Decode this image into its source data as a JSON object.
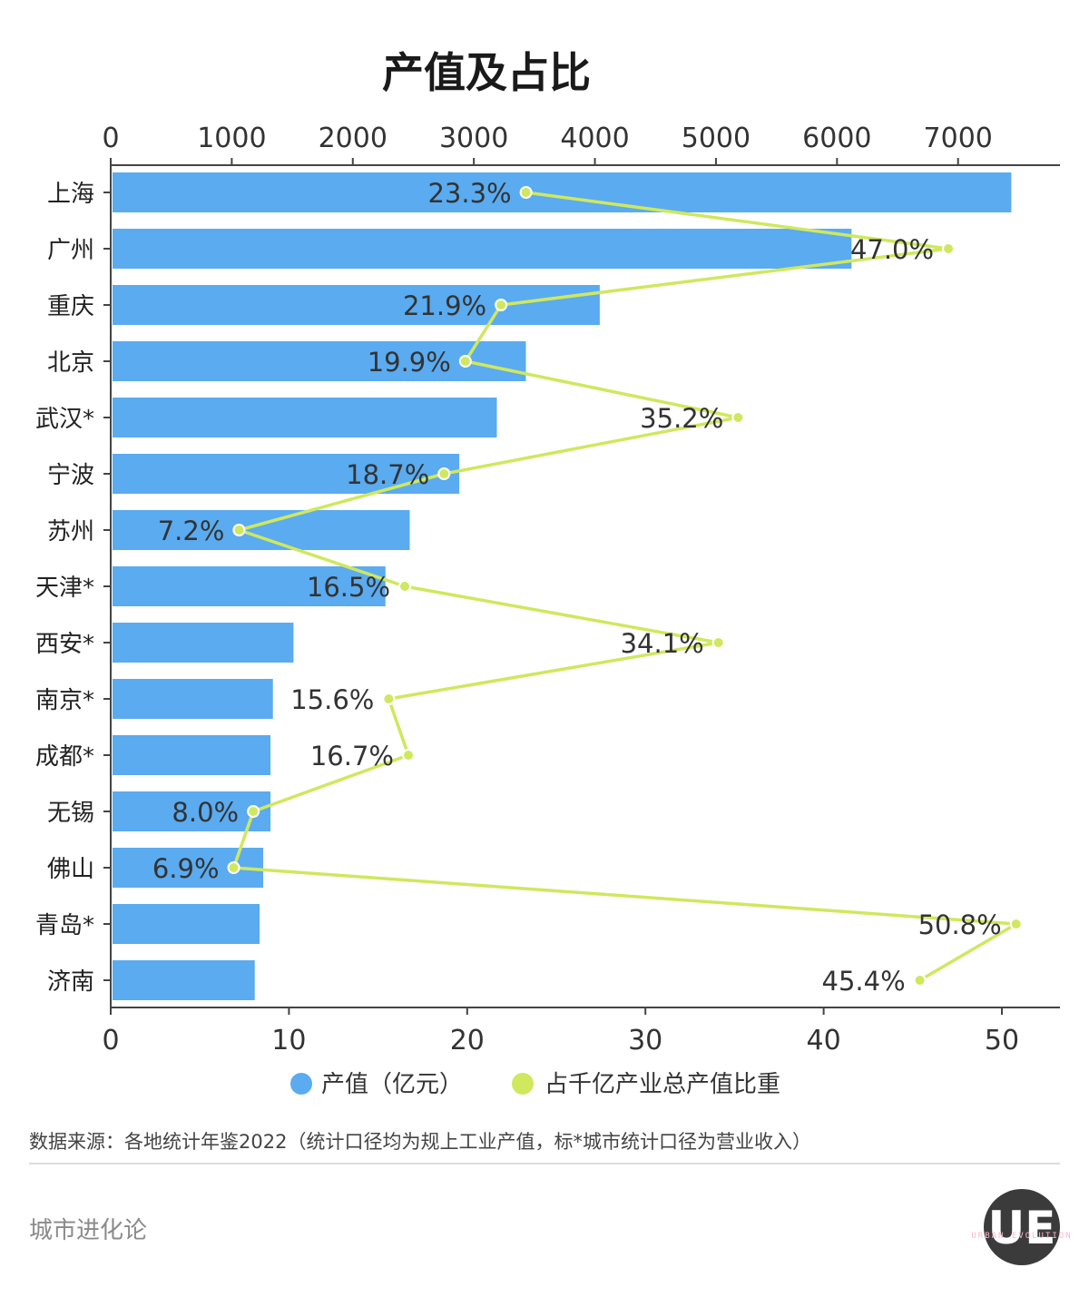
{
  "chart_data": {
    "type": "bar",
    "title": "产值及占比",
    "categories": [
      "上海",
      "广州",
      "重庆",
      "北京",
      "武汉*",
      "宁波",
      "苏州",
      "天津*",
      "西安*",
      "南京*",
      "成都*",
      "无锡",
      "佛山",
      "青岛*",
      "济南"
    ],
    "series": [
      {
        "name": "产值（亿元）",
        "type": "bar",
        "axis": "top",
        "color": "#5aabf0",
        "values": [
          7440,
          6120,
          4040,
          3430,
          3190,
          2880,
          2470,
          2270,
          1510,
          1340,
          1320,
          1320,
          1260,
          1230,
          1190
        ]
      },
      {
        "name": "占千亿产业总产值比重",
        "type": "line",
        "axis": "bottom",
        "color": "#cfe85e",
        "values": [
          23.3,
          47.0,
          21.9,
          19.9,
          35.2,
          18.7,
          7.2,
          16.5,
          34.1,
          15.6,
          16.7,
          8.0,
          6.9,
          50.8,
          45.4
        ],
        "labels": [
          "23.3%",
          "47.0%",
          "21.9%",
          "19.9%",
          "35.2%",
          "18.7%",
          "7.2%",
          "16.5%",
          "34.1%",
          "15.6%",
          "16.7%",
          "8.0%",
          "6.9%",
          "50.8%",
          "45.4%"
        ]
      }
    ],
    "top_axis": {
      "range": [
        0,
        7800
      ],
      "ticks": [
        0,
        1000,
        2000,
        3000,
        4000,
        5000,
        6000,
        7000
      ]
    },
    "bottom_axis": {
      "range": [
        0,
        53
      ],
      "ticks": [
        0,
        10,
        20,
        30,
        40,
        50
      ]
    },
    "grid": false,
    "legend_position": "bottom",
    "source": "数据来源：各地统计年鉴2022（统计口径均为规上工业产值，标*城市统计口径为营业收入）"
  },
  "brand": {
    "name": "城市进化论",
    "logo_letters": "UE",
    "logo_small": "URBAN EVOLUTION"
  },
  "watermark": {
    "text": "城市进化论",
    "subtext": "URBAN EVOLUTION"
  }
}
